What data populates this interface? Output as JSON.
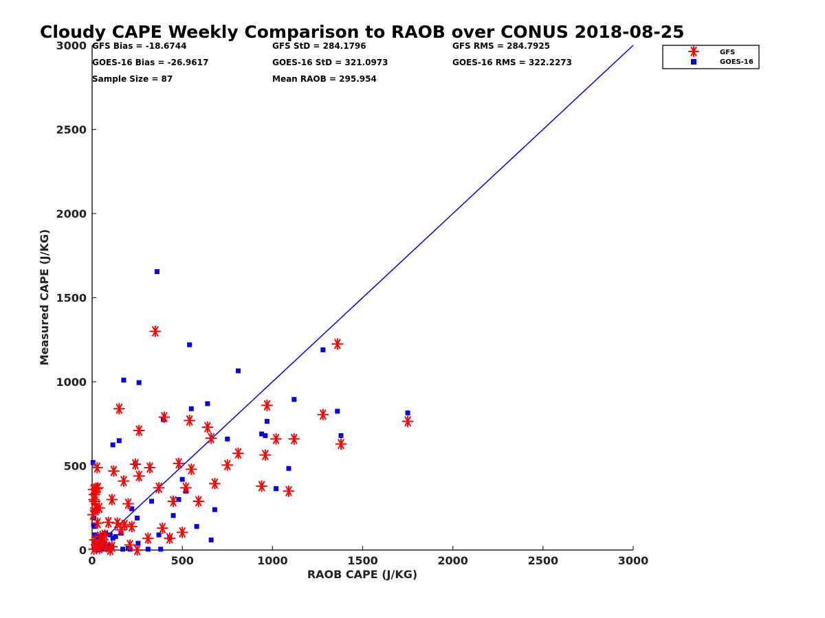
{
  "chart_data": {
    "type": "scatter",
    "title": "Cloudy CAPE Weekly Comparison to RAOB over CONUS 2018-08-25",
    "xlabel": "RAOB CAPE (J/KG)",
    "ylabel": "Measured CAPE (J/KG)",
    "xlim": [
      0,
      3000
    ],
    "ylim": [
      0,
      3000
    ],
    "xticks": [
      "0",
      "500",
      "1000",
      "1500",
      "2000",
      "2500",
      "3000"
    ],
    "yticks": [
      "0",
      "500",
      "1000",
      "1500",
      "2000",
      "2500",
      "3000"
    ],
    "grid": false,
    "legend_position": "top-right, outside plot",
    "reference_line": {
      "x": [
        0,
        3000
      ],
      "y": [
        0,
        3000
      ],
      "color": "#0000ee"
    },
    "stats": {
      "gfs_bias": "GFS Bias = -18.6744",
      "goes_bias": "GOES-16 Bias = -26.9617",
      "sample_size": "Sample Size = 87",
      "gfs_std": "GFS StD = 284.1796",
      "goes_std": "GOES-16 StD = 321.0973",
      "mean_raob": "Mean RAOB = 295.954",
      "gfs_rms": "GFS RMS = 284.7925",
      "goes_rms": "GOES-16 RMS = 322.2273"
    },
    "series": [
      {
        "name": "GFS",
        "marker": "asterisk",
        "color": "#ff0000",
        "points": [
          [
            5,
            210
          ],
          [
            8,
            360
          ],
          [
            10,
            300
          ],
          [
            12,
            330
          ],
          [
            15,
            290
          ],
          [
            20,
            250
          ],
          [
            25,
            365
          ],
          [
            28,
            490
          ],
          [
            32,
            370
          ],
          [
            30,
            160
          ],
          [
            40,
            250
          ],
          [
            45,
            80
          ],
          [
            15,
            60
          ],
          [
            25,
            30
          ],
          [
            10,
            5
          ],
          [
            40,
            10
          ],
          [
            55,
            30
          ],
          [
            60,
            60
          ],
          [
            70,
            90
          ],
          [
            80,
            20
          ],
          [
            100,
            0
          ],
          [
            110,
            300
          ],
          [
            110,
            20
          ],
          [
            120,
            470
          ],
          [
            90,
            165
          ],
          [
            140,
            160
          ],
          [
            160,
            120
          ],
          [
            175,
            410
          ],
          [
            180,
            150
          ],
          [
            200,
            275
          ],
          [
            220,
            140
          ],
          [
            210,
            30
          ],
          [
            250,
            0
          ],
          [
            260,
            440
          ],
          [
            260,
            710
          ],
          [
            240,
            510
          ],
          [
            150,
            840
          ],
          [
            310,
            70
          ],
          [
            320,
            490
          ],
          [
            350,
            1300
          ],
          [
            370,
            370
          ],
          [
            390,
            130
          ],
          [
            400,
            790
          ],
          [
            430,
            70
          ],
          [
            450,
            290
          ],
          [
            480,
            515
          ],
          [
            500,
            105
          ],
          [
            520,
            370
          ],
          [
            540,
            770
          ],
          [
            550,
            480
          ],
          [
            590,
            290
          ],
          [
            640,
            730
          ],
          [
            660,
            665
          ],
          [
            680,
            395
          ],
          [
            750,
            505
          ],
          [
            810,
            575
          ],
          [
            940,
            380
          ],
          [
            960,
            565
          ],
          [
            970,
            860
          ],
          [
            1020,
            660
          ],
          [
            1090,
            350
          ],
          [
            1120,
            660
          ],
          [
            1280,
            805
          ],
          [
            1360,
            1225
          ],
          [
            1380,
            630
          ],
          [
            1750,
            765
          ]
        ]
      },
      {
        "name": "GOES-16",
        "marker": "square",
        "color": "#0000ee",
        "points": [
          [
            5,
            520
          ],
          [
            8,
            150
          ],
          [
            10,
            190
          ],
          [
            12,
            140
          ],
          [
            15,
            90
          ],
          [
            18,
            50
          ],
          [
            20,
            230
          ],
          [
            22,
            30
          ],
          [
            25,
            245
          ],
          [
            28,
            10
          ],
          [
            30,
            60
          ],
          [
            35,
            0
          ],
          [
            40,
            80
          ],
          [
            45,
            30
          ],
          [
            50,
            5
          ],
          [
            55,
            60
          ],
          [
            60,
            90
          ],
          [
            65,
            40
          ],
          [
            70,
            20
          ],
          [
            75,
            100
          ],
          [
            80,
            5
          ],
          [
            90,
            30
          ],
          [
            100,
            90
          ],
          [
            110,
            20
          ],
          [
            115,
            70
          ],
          [
            115,
            625
          ],
          [
            130,
            80
          ],
          [
            150,
            650
          ],
          [
            160,
            100
          ],
          [
            170,
            5
          ],
          [
            175,
            1010
          ],
          [
            200,
            10
          ],
          [
            210,
            5
          ],
          [
            220,
            245
          ],
          [
            240,
            515
          ],
          [
            250,
            190
          ],
          [
            255,
            40
          ],
          [
            260,
            995
          ],
          [
            310,
            5
          ],
          [
            330,
            290
          ],
          [
            360,
            1655
          ],
          [
            370,
            90
          ],
          [
            380,
            5
          ],
          [
            395,
            775
          ],
          [
            430,
            75
          ],
          [
            450,
            205
          ],
          [
            480,
            300
          ],
          [
            500,
            420
          ],
          [
            520,
            350
          ],
          [
            540,
            1220
          ],
          [
            550,
            840
          ],
          [
            580,
            140
          ],
          [
            640,
            870
          ],
          [
            660,
            60
          ],
          [
            680,
            240
          ],
          [
            750,
            660
          ],
          [
            810,
            1065
          ],
          [
            940,
            690
          ],
          [
            960,
            680
          ],
          [
            970,
            765
          ],
          [
            1020,
            365
          ],
          [
            1090,
            485
          ],
          [
            1120,
            895
          ],
          [
            1280,
            1190
          ],
          [
            1360,
            825
          ],
          [
            1380,
            680
          ],
          [
            1750,
            815
          ]
        ]
      }
    ]
  }
}
